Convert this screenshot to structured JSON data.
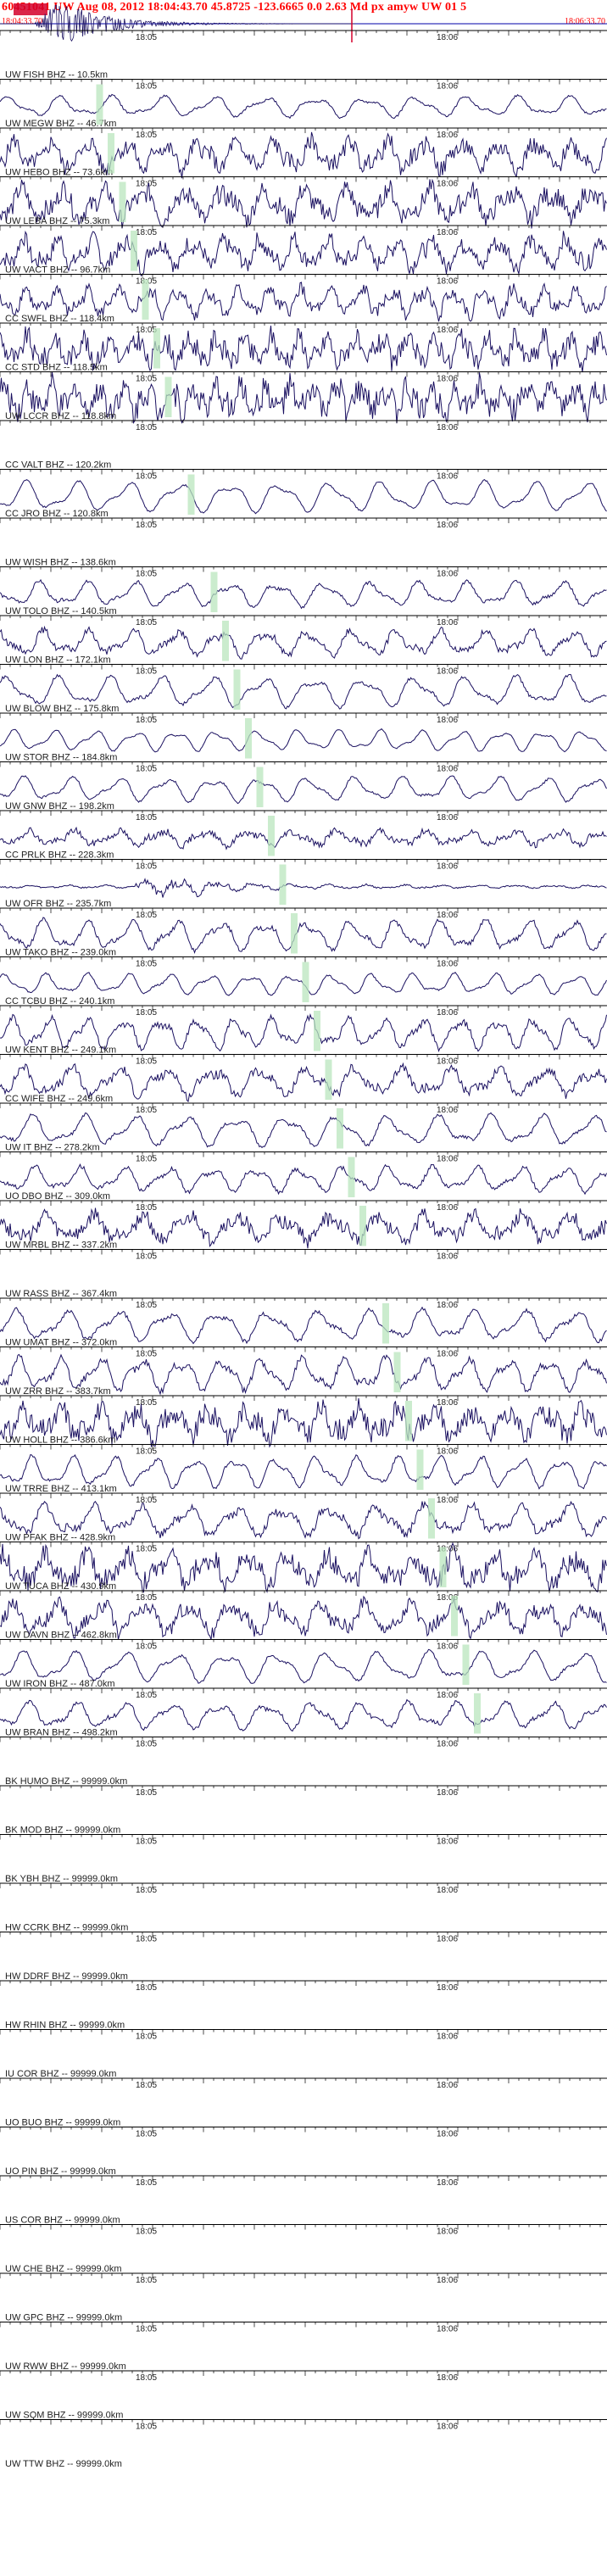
{
  "header": {
    "title": "60451041 UW Aug 08, 2012 18:04:43.70   45.8725 -123.6665  0.0 2.63 Md px amyw UW 01   5",
    "time_start": "18:04:33.70",
    "time_end": "18:06:33.70"
  },
  "colors": {
    "header_text": "#ff0000",
    "trace": "#1a1060",
    "pick_marker": "#b9e6bd",
    "axis": "#000000",
    "overview_line": "#0000aa"
  },
  "chart_data": {
    "type": "line",
    "title": "60451041 UW Aug 08, 2012 18:04:43.70   45.8725 -123.6665  0.0 2.63 Md px amyw UW 01   5",
    "time_ticks": [
      "18:05",
      "18:06"
    ],
    "x_range": [
      "18:04:33.70",
      "18:06:33.70"
    ],
    "channels": [
      {
        "label": "UW FISH BHZ -- 10.5km",
        "has_trace": false
      },
      {
        "label": "UW MEGW BHZ -- 46.7km",
        "has_trace": true,
        "amp": 0.55,
        "period": 30,
        "noise": 0.1
      },
      {
        "label": "UW HEBO BHZ -- 73.6km",
        "has_trace": true,
        "amp": 0.75,
        "period": 22,
        "noise": 0.55
      },
      {
        "label": "UW LEBA BHZ -- 75.3km",
        "has_trace": true,
        "amp": 0.8,
        "period": 24,
        "noise": 0.6
      },
      {
        "label": "UW VACT BHZ -- 96.7km",
        "has_trace": true,
        "amp": 0.75,
        "period": 20,
        "noise": 0.55
      },
      {
        "label": "CC SWFL BHZ -- 118.4km",
        "has_trace": true,
        "amp": 0.7,
        "period": 18,
        "noise": 0.45
      },
      {
        "label": "CC STD BHZ -- 118.5km",
        "has_trace": true,
        "amp": 0.75,
        "period": 16,
        "noise": 0.7
      },
      {
        "label": "UW LCCR BHZ -- 118.8km",
        "has_trace": true,
        "amp": 0.7,
        "period": 14,
        "noise": 0.9
      },
      {
        "label": "CC VALT BHZ -- 120.2km",
        "has_trace": false
      },
      {
        "label": "CC JRO BHZ -- 120.8km",
        "has_trace": true,
        "amp": 0.8,
        "period": 30,
        "noise": 0.05
      },
      {
        "label": "UW WISH BHZ -- 138.6km",
        "has_trace": false
      },
      {
        "label": "UW TOLO BHZ -- 140.5km",
        "has_trace": true,
        "amp": 0.65,
        "period": 28,
        "noise": 0.12
      },
      {
        "label": "UW LON BHZ -- 172.1km",
        "has_trace": true,
        "amp": 0.65,
        "period": 26,
        "noise": 0.25
      },
      {
        "label": "UW BLOW BHZ -- 175.8km",
        "has_trace": true,
        "amp": 0.8,
        "period": 30,
        "noise": 0.1
      },
      {
        "label": "UW STOR BHZ -- 184.8km",
        "has_trace": true,
        "amp": 0.55,
        "period": 24,
        "noise": 0.05
      },
      {
        "label": "UW GNW BHZ -- 198.2km",
        "has_trace": true,
        "amp": 0.65,
        "period": 28,
        "noise": 0.08
      },
      {
        "label": "CC PRLK BHZ -- 228.3km",
        "has_trace": true,
        "amp": 0.4,
        "period": 26,
        "noise": 0.4
      },
      {
        "label": "UW OFR BHZ -- 235.7km",
        "has_trace": true,
        "amp": 0.18,
        "period": 22,
        "noise": 0.45,
        "burst": true
      },
      {
        "label": "UW TAKO BHZ -- 239.0km",
        "has_trace": true,
        "amp": 0.8,
        "period": 26,
        "noise": 0.15
      },
      {
        "label": "CC TCBU BHZ -- 240.1km",
        "has_trace": true,
        "amp": 0.55,
        "period": 24,
        "noise": 0.08
      },
      {
        "label": "UW KENT BHZ -- 249.1km",
        "has_trace": true,
        "amp": 0.8,
        "period": 22,
        "noise": 0.2
      },
      {
        "label": "CC WIFE BHZ -- 249.6km",
        "has_trace": true,
        "amp": 0.75,
        "period": 28,
        "noise": 0.3
      },
      {
        "label": "UW IT BHZ -- 278.2km",
        "has_trace": true,
        "amp": 0.8,
        "period": 30,
        "noise": 0.1
      },
      {
        "label": "UO DBO BHZ -- 309.0km",
        "has_trace": true,
        "amp": 0.65,
        "period": 26,
        "noise": 0.15
      },
      {
        "label": "UW MRBL BHZ -- 337.2km",
        "has_trace": true,
        "amp": 0.65,
        "period": 28,
        "noise": 0.55
      },
      {
        "label": "UW RASS BHZ -- 367.4km",
        "has_trace": false
      },
      {
        "label": "UW UMAT BHZ -- 372.0km",
        "has_trace": true,
        "amp": 0.8,
        "period": 30,
        "noise": 0.12
      },
      {
        "label": "UW ZRR BHZ -- 383.7km",
        "has_trace": true,
        "amp": 0.85,
        "period": 24,
        "noise": 0.2
      },
      {
        "label": "UW HOLL BHZ -- 386.6km",
        "has_trace": true,
        "amp": 0.75,
        "period": 22,
        "noise": 0.7
      },
      {
        "label": "UW TRRE BHZ -- 413.1km",
        "has_trace": true,
        "amp": 0.8,
        "period": 24,
        "noise": 0.1
      },
      {
        "label": "UW PFAK BHZ -- 428.9km",
        "has_trace": true,
        "amp": 0.8,
        "period": 28,
        "noise": 0.25
      },
      {
        "label": "UW TUCA BHZ -- 430.9km",
        "has_trace": true,
        "amp": 0.8,
        "period": 24,
        "noise": 0.65
      },
      {
        "label": "UW DAVN BHZ -- 462.8km",
        "has_trace": true,
        "amp": 0.8,
        "period": 26,
        "noise": 0.45
      },
      {
        "label": "UW IRON BHZ -- 487.0km",
        "has_trace": true,
        "amp": 0.8,
        "period": 30,
        "noise": 0.08
      },
      {
        "label": "UW BRAN BHZ -- 498.2km",
        "has_trace": true,
        "amp": 0.7,
        "period": 28,
        "noise": 0.15
      },
      {
        "label": "BK HUMO BHZ -- 99999.0km",
        "has_trace": false
      },
      {
        "label": "BK MOD BHZ -- 99999.0km",
        "has_trace": false
      },
      {
        "label": "BK YBH BHZ -- 99999.0km",
        "has_trace": false
      },
      {
        "label": "HW CCRK BHZ -- 99999.0km",
        "has_trace": false
      },
      {
        "label": "HW DDRF BHZ -- 99999.0km",
        "has_trace": false
      },
      {
        "label": "HW RHIN BHZ -- 99999.0km",
        "has_trace": false
      },
      {
        "label": "IU COR BHZ -- 99999.0km",
        "has_trace": false
      },
      {
        "label": "UO BUO BHZ -- 99999.0km",
        "has_trace": false
      },
      {
        "label": "UO PIN BHZ -- 99999.0km",
        "has_trace": false
      },
      {
        "label": "US COR BHZ -- 99999.0km",
        "has_trace": false
      },
      {
        "label": "UW CHE BHZ -- 99999.0km",
        "has_trace": false
      },
      {
        "label": "UW GPC BHZ -- 99999.0km",
        "has_trace": false
      },
      {
        "label": "UW RWW BHZ -- 99999.0km",
        "has_trace": false
      },
      {
        "label": "UW SQM BHZ -- 99999.0km",
        "has_trace": false
      },
      {
        "label": "UW TTW BHZ -- 99999.0km",
        "has_trace": false
      }
    ]
  }
}
